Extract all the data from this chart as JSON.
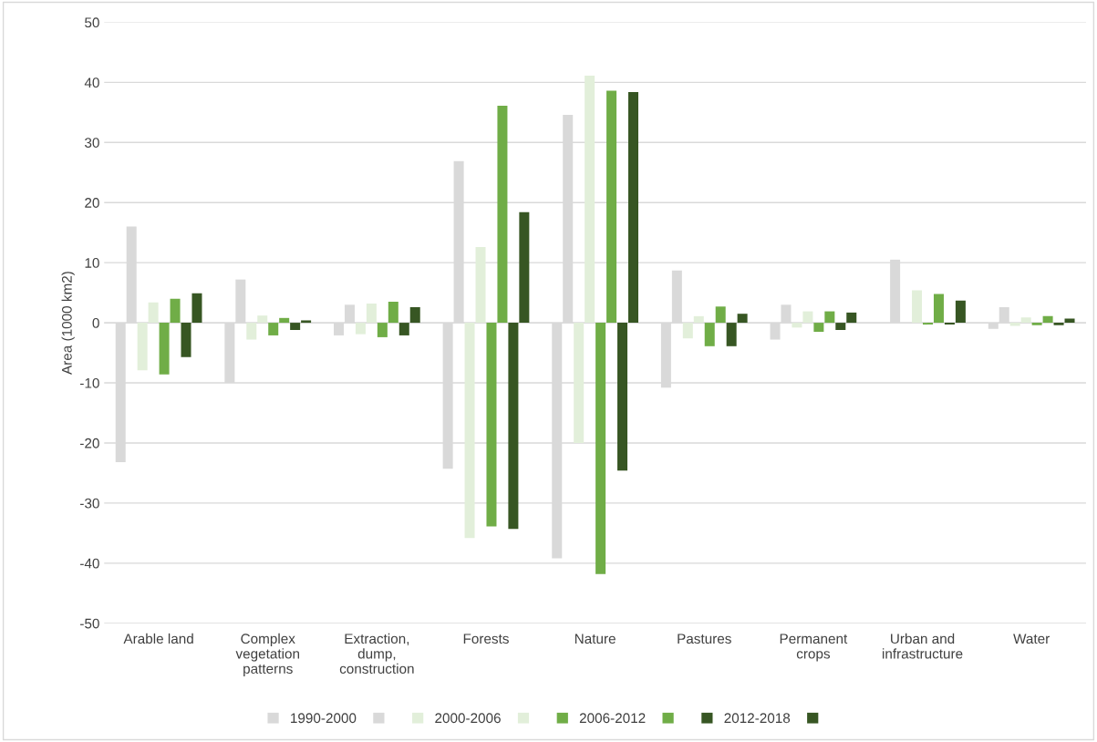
{
  "chart_data": {
    "type": "bar",
    "ylabel": "Area (1000 km2)",
    "categories": [
      "Arable land",
      "Complex\nvegetation\npatterns",
      "Extraction,\ndump,\nconstruction",
      "Forests",
      "Nature",
      "Pastures",
      "Permanent\ncrops",
      "Urban and\ninfrastructure",
      "Water"
    ],
    "series": [
      {
        "name": "1990-2000",
        "color": "#d9d9d9",
        "values": [
          -23.2,
          -10,
          -2.1,
          -24.3,
          -39.2,
          -10.8,
          -2.8,
          null,
          -1.0
        ]
      },
      {
        "color": "#d9d9d9",
        "values": [
          16,
          7.2,
          3.0,
          26.9,
          34.6,
          8.7,
          3.0,
          10.5,
          2.6
        ]
      },
      {
        "name": "2000-2006",
        "color": "#e2efda",
        "values": [
          -7.9,
          -2.8,
          -1.9,
          -35.8,
          -20,
          -2.6,
          -0.8,
          null,
          -0.5
        ]
      },
      {
        "color": "#e2efda",
        "values": [
          3.4,
          1.2,
          3.2,
          12.6,
          41.1,
          1.1,
          1.9,
          5.4,
          0.9
        ]
      },
      {
        "name": "2006-2012",
        "color": "#70ad47",
        "values": [
          -8.6,
          -2.1,
          -2.4,
          -33.9,
          -41.8,
          -3.9,
          -1.5,
          -0.3,
          -0.4
        ]
      },
      {
        "color": "#70ad47",
        "values": [
          4.0,
          0.8,
          3.5,
          36.1,
          38.6,
          2.7,
          1.9,
          4.8,
          1.1
        ]
      },
      {
        "name": "2012-2018",
        "color": "#375623",
        "values": [
          -5.7,
          -1.2,
          -2.1,
          -34.3,
          -24.6,
          -3.9,
          -1.2,
          -0.3,
          -0.4
        ]
      },
      {
        "color": "#375623",
        "values": [
          4.9,
          0.4,
          2.6,
          18.4,
          38.4,
          1.5,
          1.7,
          3.7,
          0.7
        ]
      }
    ],
    "ylim": [
      -50,
      50
    ],
    "yticks": [
      -50,
      -40,
      -30,
      -20,
      -10,
      0,
      10,
      20,
      30,
      40,
      50
    ],
    "grid": "y",
    "legend": "bottom"
  }
}
